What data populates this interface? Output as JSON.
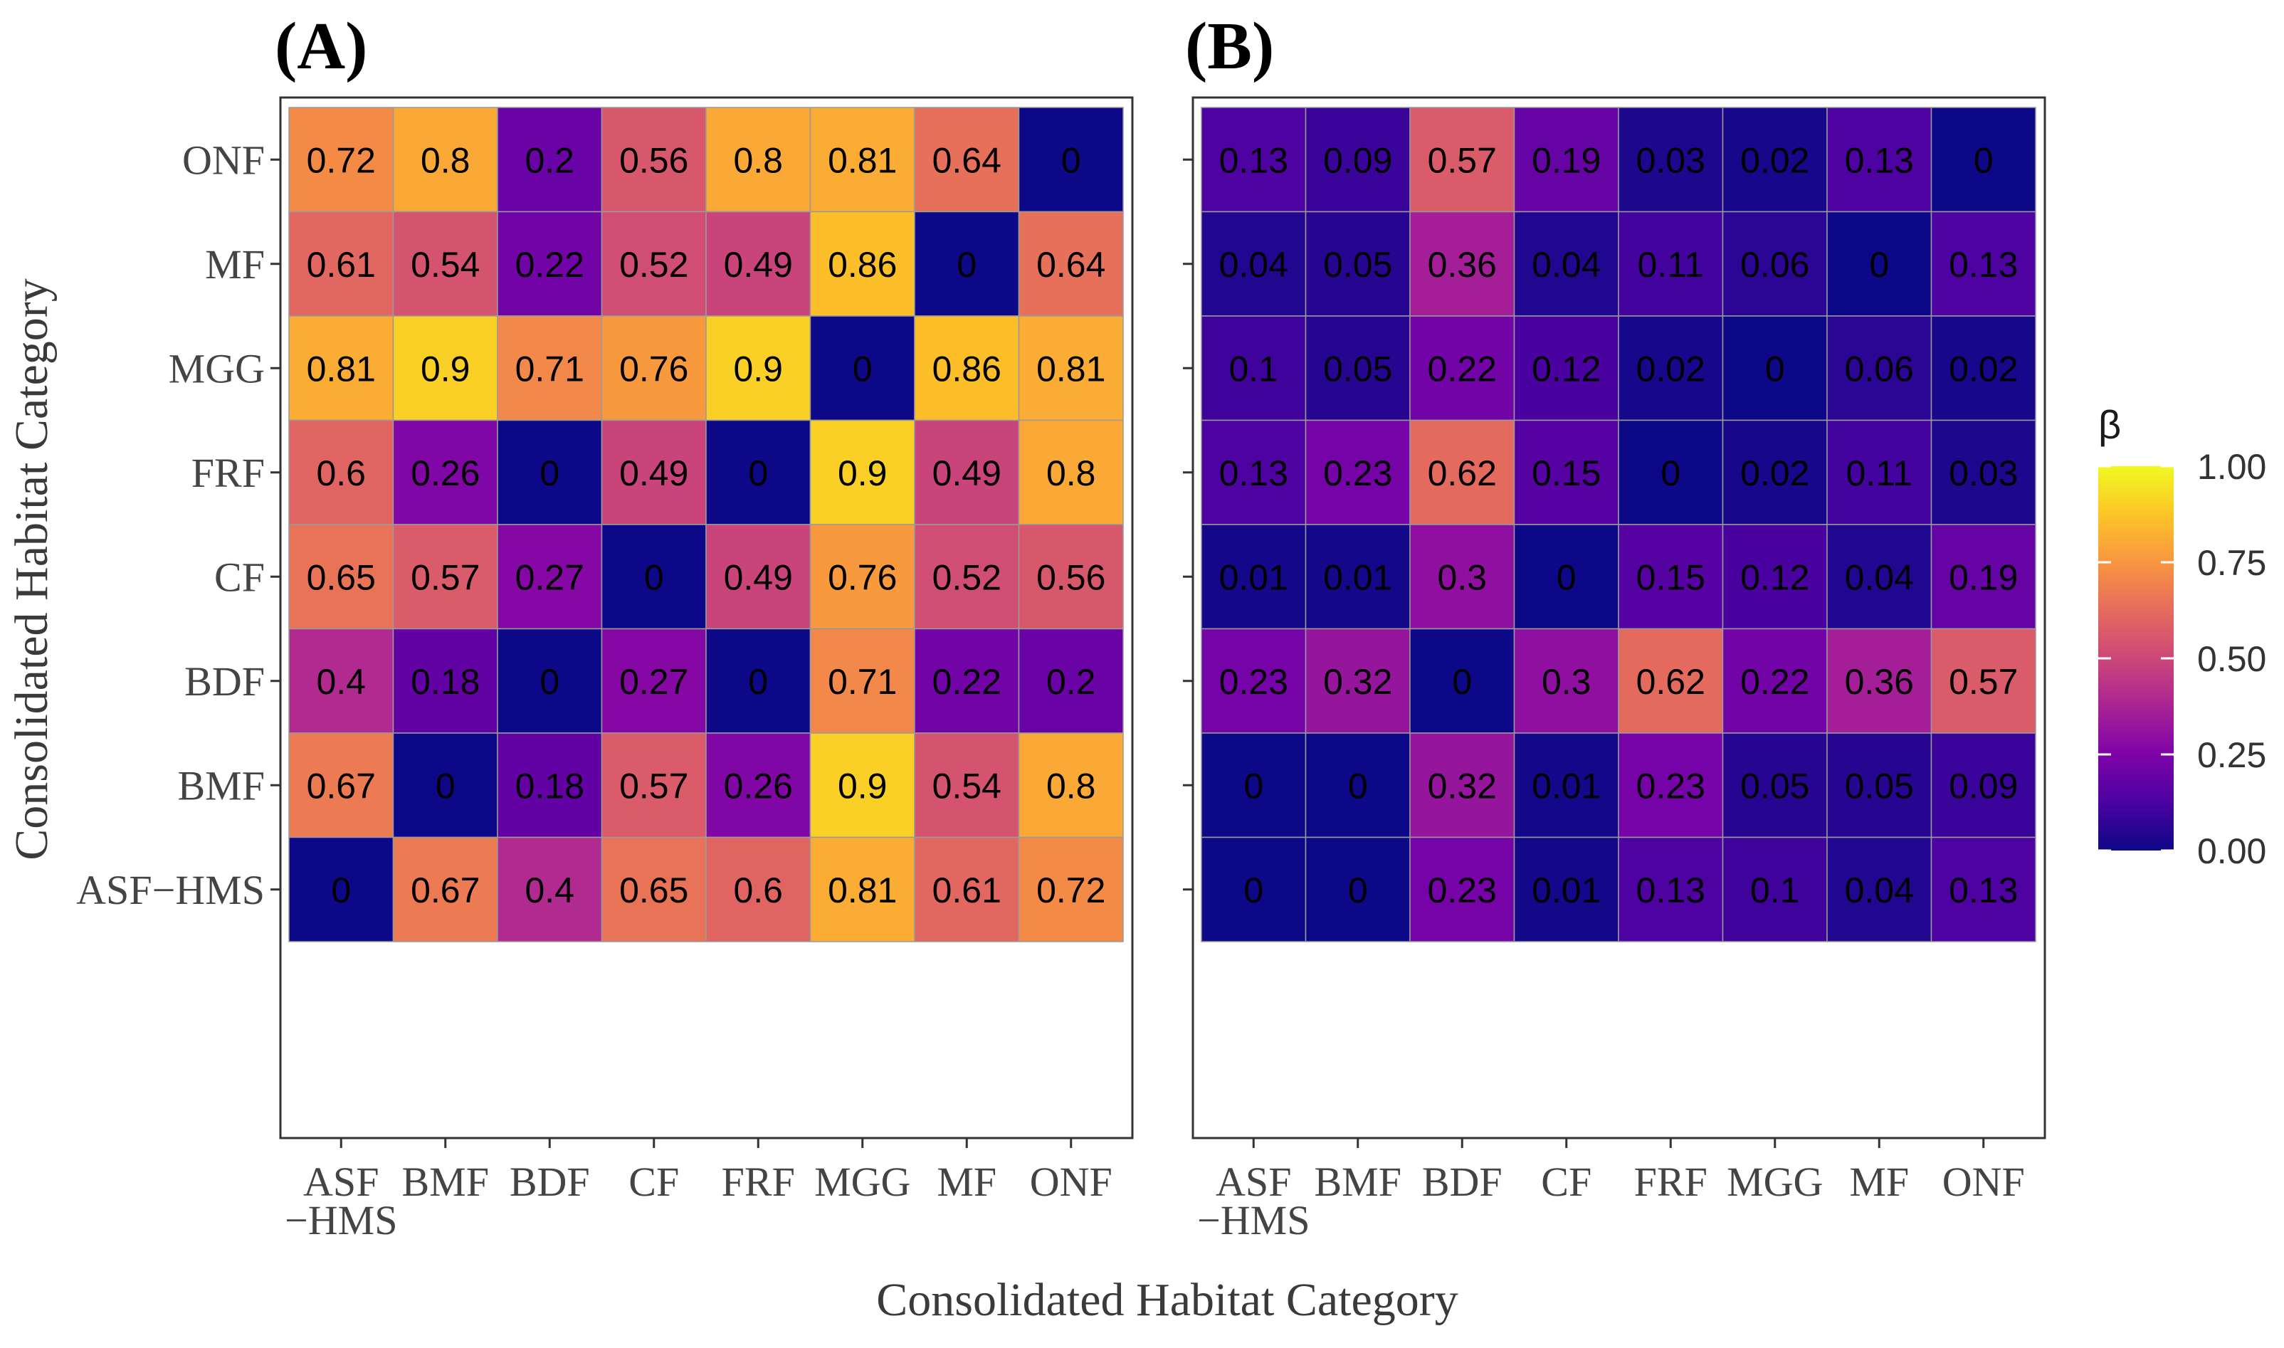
{
  "chart_data": {
    "type": "heatmap",
    "categories": [
      "ASF−HMS",
      "BMF",
      "BDF",
      "CF",
      "FRF",
      "MGG",
      "MF",
      "ONF"
    ],
    "x_tick_labels": [
      [
        "ASF",
        "−HMS"
      ],
      [
        "BMF"
      ],
      [
        "BDF"
      ],
      [
        "CF"
      ],
      [
        "FRF"
      ],
      [
        "MGG"
      ],
      [
        "MF"
      ],
      [
        "ONF"
      ]
    ],
    "xlabel": "Consolidated Habitat Category",
    "ylabel": "Consolidated Habitat Category",
    "legend": {
      "title": "β",
      "range": [
        0,
        1
      ],
      "ticks": [
        {
          "value": 1.0,
          "label": "1.00"
        },
        {
          "value": 0.75,
          "label": "0.75"
        },
        {
          "value": 0.5,
          "label": "0.50"
        },
        {
          "value": 0.25,
          "label": "0.25"
        },
        {
          "value": 0.0,
          "label": "0.00"
        }
      ],
      "position": "right"
    },
    "panels": [
      {
        "label": "(A)",
        "rows_top_to_bottom": [
          "ONF",
          "MF",
          "MGG",
          "FRF",
          "CF",
          "BDF",
          "BMF",
          "ASF−HMS"
        ],
        "values": [
          [
            "0.72",
            "0.8",
            "0.2",
            "0.56",
            "0.8",
            "0.81",
            "0.64",
            "0"
          ],
          [
            "0.61",
            "0.54",
            "0.22",
            "0.52",
            "0.49",
            "0.86",
            "0",
            "0.64"
          ],
          [
            "0.81",
            "0.9",
            "0.71",
            "0.76",
            "0.9",
            "0",
            "0.86",
            "0.81"
          ],
          [
            "0.6",
            "0.26",
            "0",
            "0.49",
            "0",
            "0.9",
            "0.49",
            "0.8"
          ],
          [
            "0.65",
            "0.57",
            "0.27",
            "0",
            "0.49",
            "0.76",
            "0.52",
            "0.56"
          ],
          [
            "0.4",
            "0.18",
            "0",
            "0.27",
            "0",
            "0.71",
            "0.22",
            "0.2"
          ],
          [
            "0.67",
            "0",
            "0.18",
            "0.57",
            "0.26",
            "0.9",
            "0.54",
            "0.8"
          ],
          [
            "0",
            "0.67",
            "0.4",
            "0.65",
            "0.6",
            "0.81",
            "0.61",
            "0.72"
          ]
        ]
      },
      {
        "label": "(B)",
        "rows_top_to_bottom": [
          "ONF",
          "MF",
          "MGG",
          "FRF",
          "CF",
          "BDF",
          "BMF",
          "ASF−HMS"
        ],
        "values": [
          [
            "0.13",
            "0.09",
            "0.57",
            "0.19",
            "0.03",
            "0.02",
            "0.13",
            "0"
          ],
          [
            "0.04",
            "0.05",
            "0.36",
            "0.04",
            "0.11",
            "0.06",
            "0",
            "0.13"
          ],
          [
            "0.1",
            "0.05",
            "0.22",
            "0.12",
            "0.02",
            "0",
            "0.06",
            "0.02"
          ],
          [
            "0.13",
            "0.23",
            "0.62",
            "0.15",
            "0",
            "0.02",
            "0.11",
            "0.03"
          ],
          [
            "0.01",
            "0.01",
            "0.3",
            "0",
            "0.15",
            "0.12",
            "0.04",
            "0.19"
          ],
          [
            "0.23",
            "0.32",
            "0",
            "0.3",
            "0.62",
            "0.22",
            "0.36",
            "0.57"
          ],
          [
            "0",
            "0",
            "0.32",
            "0.01",
            "0.23",
            "0.05",
            "0.05",
            "0.09"
          ],
          [
            "0",
            "0",
            "0.23",
            "0.01",
            "0.13",
            "0.1",
            "0.04",
            "0.13"
          ]
        ]
      }
    ]
  }
}
